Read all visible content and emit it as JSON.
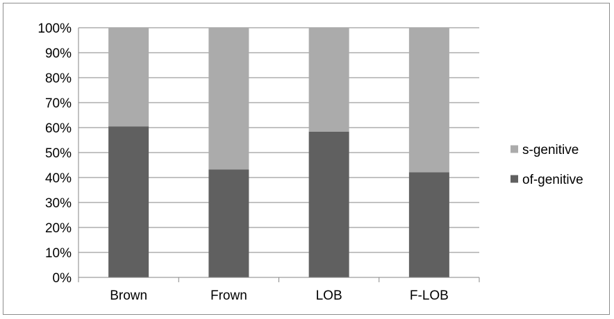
{
  "chart_data": {
    "type": "bar",
    "stacked": true,
    "percent": true,
    "categories": [
      "Brown",
      "Frown",
      "LOB",
      "F-LOB"
    ],
    "series": [
      {
        "name": "of-genitive",
        "values": [
          60.5,
          43.2,
          58.4,
          42.1
        ],
        "color": "#606060"
      },
      {
        "name": "s-genitive",
        "values": [
          39.5,
          56.8,
          41.6,
          57.9
        ],
        "color": "#ababab"
      }
    ],
    "yticks": [
      "0%",
      "10%",
      "20%",
      "30%",
      "40%",
      "50%",
      "60%",
      "70%",
      "80%",
      "90%",
      "100%"
    ],
    "ylim": [
      0,
      100
    ],
    "grid": true,
    "legend": {
      "position": "right",
      "order": [
        "s-genitive",
        "of-genitive"
      ]
    }
  }
}
